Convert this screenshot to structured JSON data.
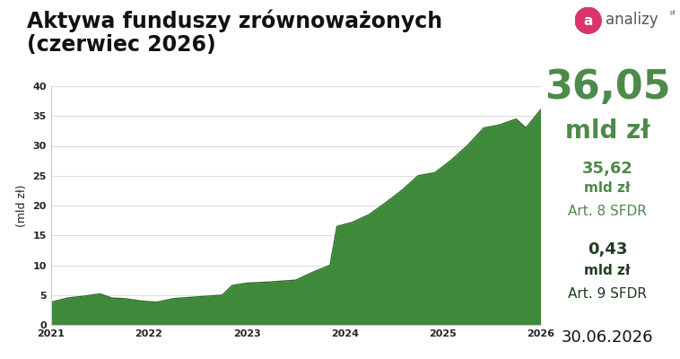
{
  "chart_data": {
    "type": "area",
    "title": "Aktywa funduszy zrównoważonych\n(czerwiec 2026)",
    "y_label": "(mld zł)",
    "x": [
      2021.0,
      2021.17,
      2021.33,
      2021.5,
      2021.62,
      2021.75,
      2021.92,
      2022.08,
      2022.25,
      2022.42,
      2022.58,
      2022.75,
      2022.85,
      2023.0,
      2023.25,
      2023.5,
      2023.67,
      2023.85,
      2023.92,
      2024.08,
      2024.25,
      2024.42,
      2024.58,
      2024.75,
      2024.92,
      2025.08,
      2025.25,
      2025.42,
      2025.58,
      2025.75,
      2025.85,
      2026.0
    ],
    "values": [
      3.8,
      4.5,
      4.8,
      5.2,
      4.5,
      4.4,
      4.0,
      3.8,
      4.4,
      4.6,
      4.8,
      5.0,
      6.6,
      7.0,
      7.2,
      7.5,
      8.8,
      10.0,
      16.5,
      17.2,
      18.5,
      20.5,
      22.5,
      25.0,
      25.5,
      27.5,
      30.0,
      33.0,
      33.5,
      34.5,
      33.0,
      36.05
    ],
    "color": "#3f8a3a",
    "xlim": [
      2021,
      2026
    ],
    "xticks": [
      2021,
      2022,
      2023,
      2024,
      2025,
      2026
    ],
    "ylim": [
      0,
      40
    ],
    "yticks": [
      0,
      5,
      10,
      15,
      20,
      25,
      30,
      35,
      40
    ],
    "grid": true
  },
  "side_panel": {
    "total": {
      "value": "36,05",
      "unit": "mld zł"
    },
    "art8": {
      "value": "35,62",
      "unit": "mld zł",
      "label": "Art. 8 SFDR"
    },
    "art9": {
      "value": "0,43",
      "unit": "mld zł",
      "label": "Art. 9 SFDR"
    },
    "date": "30.06.2026"
  },
  "logo": {
    "icon": "a",
    "name": "analizy",
    "suffix": "pl"
  }
}
